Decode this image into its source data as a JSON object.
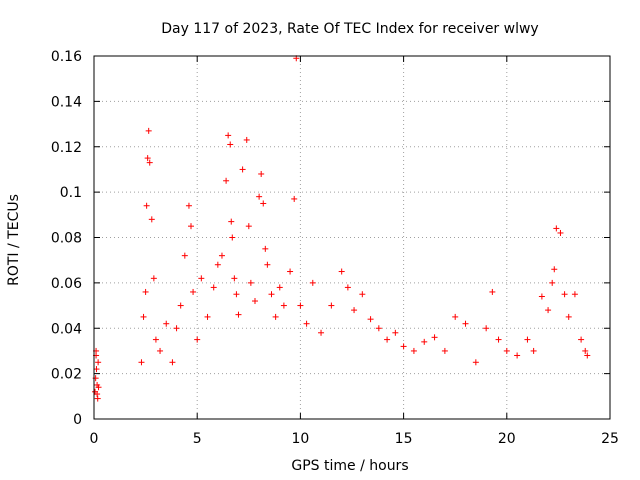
{
  "chart_data": {
    "type": "scatter",
    "title": "Day 117 of 2023, Rate Of TEC Index for receiver wlwy",
    "xlabel": "GPS time / hours",
    "ylabel": "ROTI / TECUs",
    "xlim": [
      0,
      25
    ],
    "ylim": [
      0,
      0.16
    ],
    "grid": true,
    "marker": "+",
    "marker_color": "#ff0000",
    "x_ticks": [
      0,
      5,
      10,
      15,
      20,
      25
    ],
    "x_tick_labels": [
      "0",
      "5",
      "10",
      "15",
      "20",
      "25"
    ],
    "y_ticks": [
      0,
      0.02,
      0.04,
      0.06,
      0.08,
      0.1,
      0.12,
      0.14,
      0.16
    ],
    "y_tick_labels": [
      "0",
      "0.02",
      "0.04",
      "0.06",
      "0.08",
      "0.1",
      "0.12",
      "0.14",
      "0.16"
    ],
    "series": [
      {
        "name": "ROTI",
        "x": [
          0.05,
          0.08,
          0.1,
          0.12,
          0.15,
          0.18,
          0.2,
          0.22,
          0.1,
          0.15,
          2.3,
          2.4,
          2.5,
          2.55,
          2.6,
          2.65,
          2.7,
          2.8,
          2.9,
          3.0,
          3.2,
          3.5,
          3.8,
          4.0,
          4.2,
          4.4,
          4.6,
          4.7,
          4.8,
          5.0,
          5.2,
          5.5,
          5.8,
          6.0,
          6.2,
          6.4,
          6.5,
          6.6,
          6.65,
          6.7,
          6.8,
          6.9,
          7.0,
          7.2,
          7.4,
          7.5,
          7.6,
          7.8,
          8.0,
          8.1,
          8.2,
          8.3,
          8.4,
          8.6,
          8.8,
          9.0,
          9.2,
          9.5,
          9.7,
          9.8,
          10.0,
          10.3,
          10.6,
          11.0,
          11.5,
          12.0,
          12.3,
          12.6,
          13.0,
          13.4,
          13.8,
          14.2,
          14.6,
          15.0,
          15.5,
          16.0,
          16.5,
          17.0,
          17.5,
          18.0,
          18.5,
          19.0,
          19.3,
          19.6,
          20.0,
          20.5,
          21.0,
          21.3,
          21.7,
          22.0,
          22.2,
          22.3,
          22.4,
          22.6,
          22.8,
          23.0,
          23.3,
          23.6,
          23.8,
          23.9
        ],
        "y": [
          0.012,
          0.018,
          0.028,
          0.022,
          0.015,
          0.009,
          0.025,
          0.014,
          0.03,
          0.011,
          0.025,
          0.045,
          0.056,
          0.094,
          0.115,
          0.127,
          0.113,
          0.088,
          0.062,
          0.035,
          0.03,
          0.042,
          0.025,
          0.04,
          0.05,
          0.072,
          0.094,
          0.085,
          0.056,
          0.035,
          0.062,
          0.045,
          0.058,
          0.068,
          0.072,
          0.105,
          0.125,
          0.121,
          0.087,
          0.08,
          0.062,
          0.055,
          0.046,
          0.11,
          0.123,
          0.085,
          0.06,
          0.052,
          0.098,
          0.108,
          0.095,
          0.075,
          0.068,
          0.055,
          0.045,
          0.058,
          0.05,
          0.065,
          0.097,
          0.159,
          0.05,
          0.042,
          0.06,
          0.038,
          0.05,
          0.065,
          0.058,
          0.048,
          0.055,
          0.044,
          0.04,
          0.035,
          0.038,
          0.032,
          0.03,
          0.034,
          0.036,
          0.03,
          0.045,
          0.042,
          0.025,
          0.04,
          0.056,
          0.035,
          0.03,
          0.028,
          0.035,
          0.03,
          0.054,
          0.048,
          0.06,
          0.066,
          0.084,
          0.082,
          0.055,
          0.045,
          0.055,
          0.035,
          0.03,
          0.028
        ]
      }
    ]
  }
}
